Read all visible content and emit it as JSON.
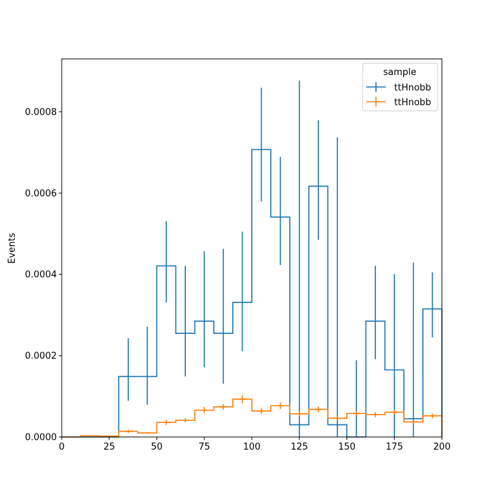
{
  "chart_data": {
    "type": "line",
    "style": "step-histogram-with-errorbars",
    "xlabel": "",
    "ylabel": "Events",
    "xlim": [
      0,
      200
    ],
    "ylim": [
      0,
      0.00093
    ],
    "xticks": [
      0,
      25,
      50,
      75,
      100,
      125,
      150,
      175,
      200
    ],
    "xtick_labels": [
      "0",
      "25",
      "50",
      "75",
      "100",
      "125",
      "150",
      "175",
      "200"
    ],
    "yticks": [
      0,
      0.0002,
      0.0004,
      0.0006,
      0.0008
    ],
    "ytick_labels": [
      "0.0000",
      "0.0002",
      "0.0004",
      "0.0006",
      "0.0008"
    ],
    "grid": false,
    "bin_edges": [
      0,
      10,
      20,
      30,
      40,
      50,
      60,
      70,
      80,
      90,
      100,
      110,
      120,
      130,
      140,
      150,
      160,
      170,
      180,
      190,
      200
    ],
    "legend": {
      "title": "sample",
      "placement": "top-right"
    },
    "series": [
      {
        "name": "ttHnobb",
        "color": "#1f77b4",
        "values": [
          0,
          0,
          0,
          0.000149,
          0.000149,
          0.000421,
          0.000255,
          0.000285,
          0.000255,
          0.000331,
          0.000707,
          0.000541,
          3e-05,
          0.000617,
          3e-05,
          0,
          0.000285,
          0.000165,
          4.5e-05,
          0.000315
        ],
        "err_low": [
          0,
          0,
          0,
          8.9e-05,
          7.9e-05,
          0.000331,
          0.000149,
          0.000172,
          0.000131,
          0.000211,
          0.000579,
          0.000423,
          0,
          0.000485,
          0,
          0,
          0.000191,
          0,
          0,
          0.000245
        ],
        "err_high": [
          0,
          0,
          0,
          0.000243,
          0.000271,
          0.000531,
          0.000421,
          0.000457,
          0.000463,
          0.000505,
          0.000859,
          0.000689,
          0.000877,
          0.000779,
          0.000737,
          0.000189,
          0.000421,
          0.000401,
          0.000429,
          0.000405
        ]
      },
      {
        "name": "ttHnobb",
        "color": "#ff7f0e",
        "values": [
          0,
          3e-06,
          2e-06,
          1.4e-05,
          1e-05,
          3.6e-05,
          4.1e-05,
          6.6e-05,
          7.4e-05,
          9.3e-05,
          6.4e-05,
          7.7e-05,
          5.7e-05,
          6.8e-05,
          4.6e-05,
          5.8e-05,
          5.5e-05,
          6.1e-05,
          3.7e-05,
          5.2e-05
        ],
        "err_low": [
          0,
          2e-06,
          1e-06,
          1e-05,
          8e-06,
          3e-05,
          3.6e-05,
          5.8e-05,
          6.7e-05,
          8.3e-05,
          5.7e-05,
          6.9e-05,
          5.1e-05,
          6.1e-05,
          4.1e-05,
          5.2e-05,
          4.9e-05,
          5.5e-05,
          3.3e-05,
          4.6e-05
        ],
        "err_high": [
          0,
          4e-06,
          3e-06,
          1.8e-05,
          1.2e-05,
          4.2e-05,
          4.6e-05,
          7.4e-05,
          8.1e-05,
          0.000103,
          7.1e-05,
          8.5e-05,
          6.3e-05,
          7.5e-05,
          5.1e-05,
          6.4e-05,
          6.1e-05,
          6.7e-05,
          4.1e-05,
          5.8e-05
        ]
      }
    ]
  }
}
